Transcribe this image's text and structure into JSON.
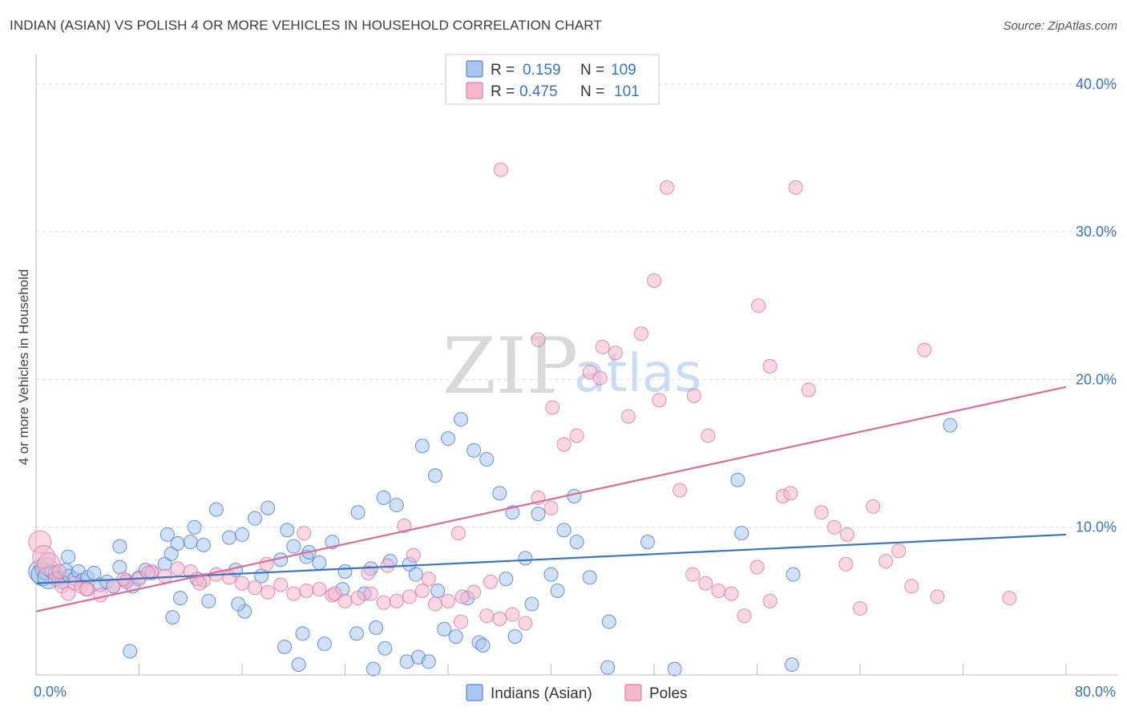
{
  "title": "INDIAN (ASIAN) VS POLISH 4 OR MORE VEHICLES IN HOUSEHOLD CORRELATION CHART",
  "source": "Source: ZipAtlas.com",
  "watermark": {
    "part1": "ZIP",
    "part2": "atlas"
  },
  "colors": {
    "blue": "#3a74c4",
    "blue_fill": "#a9c6ef",
    "pink": "#e06a9a",
    "pink_fill": "#f4b8cd",
    "grid": "#dddddd",
    "axis_text": "#3a74c4"
  },
  "legend": {
    "rows": [
      {
        "r_label": "R =",
        "r_value": "0.159",
        "n_label": "N =",
        "n_value": "109"
      },
      {
        "r_label": "R =",
        "r_value": "0.475",
        "n_label": "N =",
        "n_value": "101"
      }
    ]
  },
  "bottom_legend": [
    "Indians (Asian)",
    "Poles"
  ],
  "chart_data": {
    "type": "scatter",
    "ylabel": "4 or more Vehicles in Household",
    "xlim": [
      0,
      80
    ],
    "ylim": [
      0,
      42
    ],
    "x_tick_labels": [
      "0.0%",
      "80.0%"
    ],
    "y_ticks": [
      10,
      20,
      30,
      40
    ],
    "y_tick_labels": [
      "10.0%",
      "20.0%",
      "30.0%",
      "40.0%"
    ],
    "grid": true,
    "legend_position": "top-center",
    "series": [
      {
        "name": "Indians (Asian)",
        "color": "#3a74c4",
        "trend": {
          "x": [
            0,
            80
          ],
          "y": [
            6.2,
            9.5
          ]
        },
        "points": [
          [
            0.3,
            7.0
          ],
          [
            0.5,
            6.8
          ],
          [
            0.8,
            7.2
          ],
          [
            1.0,
            6.6
          ],
          [
            1.2,
            7.0
          ],
          [
            1.5,
            6.9
          ],
          [
            1.8,
            6.5
          ],
          [
            2.0,
            6.3
          ],
          [
            2.3,
            7.1
          ],
          [
            2.6,
            6.7
          ],
          [
            3.0,
            6.5
          ],
          [
            3.3,
            7.0
          ],
          [
            3.6,
            6.4
          ],
          [
            4.0,
            6.6
          ],
          [
            4.5,
            6.9
          ],
          [
            5.0,
            6.1
          ],
          [
            5.5,
            6.3
          ],
          [
            6.0,
            6.0
          ],
          [
            6.5,
            7.3
          ],
          [
            7.0,
            6.4
          ],
          [
            7.5,
            6.0
          ],
          [
            8.0,
            6.6
          ],
          [
            8.5,
            7.1
          ],
          [
            9.0,
            6.9
          ],
          [
            10.0,
            7.5
          ],
          [
            10.5,
            8.2
          ],
          [
            11.0,
            8.9
          ],
          [
            12.0,
            9.0
          ],
          [
            12.5,
            6.5
          ],
          [
            13.0,
            8.8
          ],
          [
            14.0,
            11.2
          ],
          [
            15.0,
            9.3
          ],
          [
            16.0,
            9.5
          ],
          [
            17.0,
            10.6
          ],
          [
            18.0,
            11.3
          ],
          [
            19.0,
            7.8
          ],
          [
            20.0,
            8.7
          ],
          [
            21.0,
            8.0
          ],
          [
            22.0,
            7.6
          ],
          [
            23.0,
            9.0
          ],
          [
            24.0,
            7.0
          ],
          [
            25.0,
            11.0
          ],
          [
            26.0,
            7.2
          ],
          [
            27.0,
            12.0
          ],
          [
            28.0,
            11.5
          ],
          [
            29.0,
            7.5
          ],
          [
            30.0,
            15.5
          ],
          [
            31.0,
            13.5
          ],
          [
            32.0,
            16.0
          ],
          [
            33.0,
            17.3
          ],
          [
            34.0,
            15.2
          ],
          [
            35.0,
            14.6
          ],
          [
            36.0,
            12.3
          ],
          [
            37.0,
            11.0
          ],
          [
            38.0,
            7.9
          ],
          [
            39.0,
            10.9
          ],
          [
            40.0,
            6.8
          ],
          [
            41.0,
            9.8
          ],
          [
            42.0,
            9.0
          ],
          [
            43.0,
            6.6
          ],
          [
            2.5,
            8.0
          ],
          [
            6.5,
            8.7
          ],
          [
            10.2,
            9.5
          ],
          [
            12.3,
            10.0
          ],
          [
            15.5,
            7.1
          ],
          [
            17.5,
            6.7
          ],
          [
            19.5,
            9.8
          ],
          [
            21.2,
            8.3
          ],
          [
            23.8,
            5.8
          ],
          [
            25.5,
            5.5
          ],
          [
            27.5,
            7.7
          ],
          [
            29.5,
            6.8
          ],
          [
            31.2,
            5.7
          ],
          [
            33.5,
            5.2
          ],
          [
            36.5,
            6.5
          ],
          [
            38.5,
            4.8
          ],
          [
            40.5,
            5.7
          ],
          [
            44.5,
            3.6
          ],
          [
            47.5,
            9.0
          ],
          [
            54.5,
            13.2
          ],
          [
            54.8,
            9.6
          ],
          [
            58.8,
            6.8
          ],
          [
            71.0,
            16.9
          ],
          [
            13.4,
            5.0
          ],
          [
            16.2,
            4.3
          ],
          [
            11.2,
            5.2
          ],
          [
            7.3,
            1.6
          ],
          [
            10.6,
            3.9
          ],
          [
            19.3,
            1.9
          ],
          [
            20.7,
            2.8
          ],
          [
            22.4,
            2.1
          ],
          [
            24.9,
            2.8
          ],
          [
            26.4,
            3.2
          ],
          [
            27.1,
            1.8
          ],
          [
            28.8,
            0.9
          ],
          [
            29.7,
            1.2
          ],
          [
            30.5,
            0.9
          ],
          [
            31.7,
            3.1
          ],
          [
            32.6,
            2.6
          ],
          [
            34.4,
            2.2
          ],
          [
            34.7,
            2.0
          ],
          [
            37.2,
            2.6
          ],
          [
            41.8,
            12.1
          ],
          [
            44.4,
            0.5
          ],
          [
            49.6,
            0.4
          ],
          [
            58.7,
            0.7
          ],
          [
            20.4,
            0.7
          ],
          [
            26.2,
            0.4
          ],
          [
            15.7,
            4.8
          ]
        ]
      },
      {
        "name": "Poles",
        "color": "#e06a9a",
        "trend": {
          "x": [
            0,
            80
          ],
          "y": [
            4.3,
            19.5
          ]
        },
        "points": [
          [
            0.3,
            9.0
          ],
          [
            0.6,
            8.0
          ],
          [
            1.0,
            7.5
          ],
          [
            1.5,
            6.5
          ],
          [
            2.0,
            6.0
          ],
          [
            2.5,
            5.5
          ],
          [
            3.0,
            6.2
          ],
          [
            3.5,
            6.0
          ],
          [
            4.0,
            5.8
          ],
          [
            5.0,
            5.4
          ],
          [
            6.0,
            6.0
          ],
          [
            7.0,
            6.3
          ],
          [
            8.0,
            6.5
          ],
          [
            9.0,
            7.0
          ],
          [
            10.0,
            6.7
          ],
          [
            11.0,
            7.2
          ],
          [
            12.0,
            7.0
          ],
          [
            13.0,
            6.4
          ],
          [
            14.0,
            6.8
          ],
          [
            15.0,
            6.6
          ],
          [
            16.0,
            6.2
          ],
          [
            17.0,
            5.9
          ],
          [
            18.0,
            5.6
          ],
          [
            19.0,
            6.1
          ],
          [
            20.0,
            5.5
          ],
          [
            21.0,
            5.7
          ],
          [
            22.0,
            5.8
          ],
          [
            23.0,
            5.4
          ],
          [
            24.0,
            5.0
          ],
          [
            25.0,
            5.2
          ],
          [
            26.0,
            5.5
          ],
          [
            27.0,
            4.9
          ],
          [
            28.0,
            5.0
          ],
          [
            29.0,
            5.3
          ],
          [
            30.0,
            5.7
          ],
          [
            31.0,
            4.8
          ],
          [
            32.0,
            5.0
          ],
          [
            33.0,
            3.6
          ],
          [
            34.0,
            5.6
          ],
          [
            35.0,
            4.0
          ],
          [
            36.0,
            3.8
          ],
          [
            37.0,
            4.1
          ],
          [
            38.0,
            3.5
          ],
          [
            39.0,
            12.0
          ],
          [
            40.0,
            11.3
          ],
          [
            41.0,
            15.6
          ],
          [
            42.0,
            16.2
          ],
          [
            43.0,
            20.5
          ],
          [
            44.0,
            22.2
          ],
          [
            45.0,
            21.8
          ],
          [
            46.0,
            17.5
          ],
          [
            47.0,
            23.1
          ],
          [
            48.0,
            26.7
          ],
          [
            49.0,
            33.0
          ],
          [
            50.0,
            12.5
          ],
          [
            51.0,
            6.8
          ],
          [
            52.0,
            6.2
          ],
          [
            53.0,
            5.7
          ],
          [
            54.0,
            5.5
          ],
          [
            55.0,
            4.0
          ],
          [
            56.0,
            7.3
          ],
          [
            57.0,
            5.0
          ],
          [
            58.0,
            12.1
          ],
          [
            59.0,
            33.0
          ],
          [
            60.0,
            19.3
          ],
          [
            61.0,
            11.0
          ],
          [
            62.0,
            10.0
          ],
          [
            63.0,
            9.5
          ],
          [
            64.0,
            4.5
          ],
          [
            65.0,
            11.4
          ],
          [
            66.0,
            7.7
          ],
          [
            67.0,
            8.4
          ],
          [
            68.0,
            6.0
          ],
          [
            69.0,
            22.0
          ],
          [
            70.0,
            5.3
          ],
          [
            36.1,
            34.2
          ],
          [
            39.0,
            22.7
          ],
          [
            40.1,
            18.1
          ],
          [
            43.8,
            20.1
          ],
          [
            48.4,
            18.6
          ],
          [
            51.1,
            18.9
          ],
          [
            52.2,
            16.2
          ],
          [
            56.1,
            25.0
          ],
          [
            57.0,
            20.9
          ],
          [
            58.6,
            12.3
          ],
          [
            62.9,
            7.5
          ],
          [
            75.6,
            5.2
          ],
          [
            1.8,
            7.0
          ],
          [
            3.9,
            5.8
          ],
          [
            6.8,
            6.5
          ],
          [
            8.7,
            6.9
          ],
          [
            12.7,
            6.2
          ],
          [
            17.9,
            7.5
          ],
          [
            20.8,
            9.6
          ],
          [
            23.2,
            5.5
          ],
          [
            25.8,
            6.9
          ],
          [
            27.3,
            7.4
          ],
          [
            29.3,
            8.1
          ],
          [
            33.1,
            5.3
          ],
          [
            35.3,
            6.3
          ],
          [
            30.5,
            6.5
          ],
          [
            28.6,
            10.1
          ],
          [
            32.8,
            9.6
          ]
        ]
      }
    ]
  }
}
